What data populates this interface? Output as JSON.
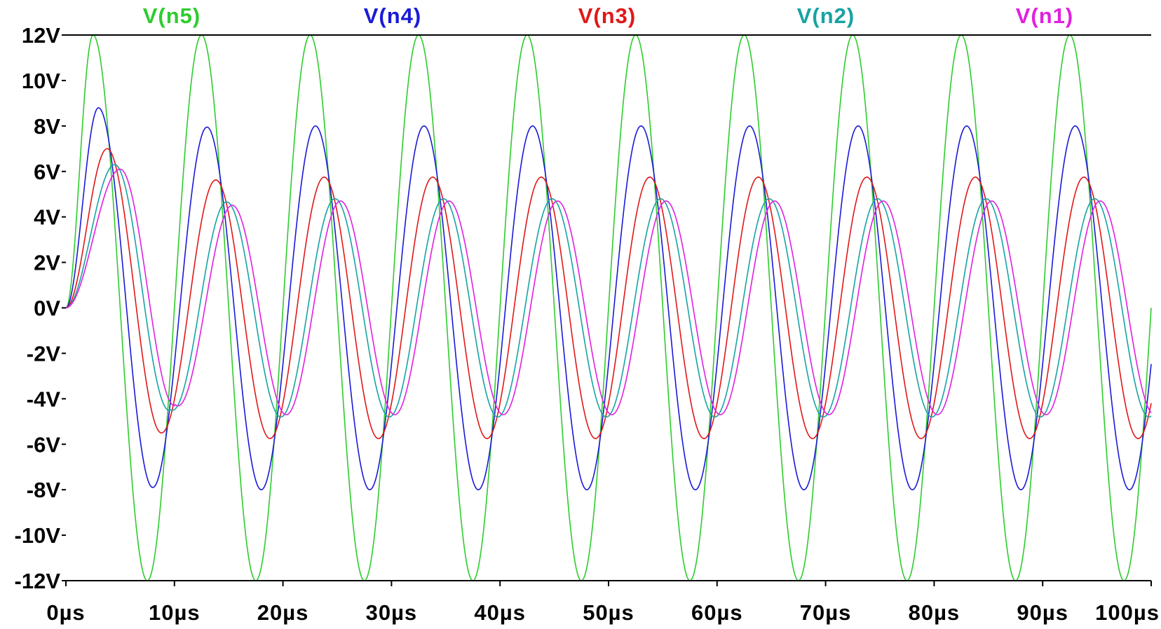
{
  "chart_data": {
    "type": "line",
    "title": "",
    "xlabel": "",
    "ylabel": "",
    "x_unit": "µs",
    "y_unit": "V",
    "xlim": [
      0,
      100
    ],
    "ylim": [
      -12,
      12
    ],
    "x_ticks": [
      0,
      10,
      20,
      30,
      40,
      50,
      60,
      70,
      80,
      90,
      100
    ],
    "x_tick_labels": [
      "0µs",
      "10µs",
      "20µs",
      "30µs",
      "40µs",
      "50µs",
      "60µs",
      "70µs",
      "80µs",
      "90µs",
      "100µs"
    ],
    "y_ticks": [
      12,
      10,
      8,
      6,
      4,
      2,
      0,
      -2,
      -4,
      -6,
      -8,
      -10,
      -12
    ],
    "y_tick_labels": [
      "12V",
      "10V",
      "8V",
      "6V",
      "4V",
      "2V",
      "0V",
      "-2V",
      "-4V",
      "-6V",
      "-8V",
      "-10V",
      "-12V"
    ],
    "grid": false,
    "legend_position": "top",
    "series": [
      {
        "name": "V(n5)",
        "color": "#2ecc2e",
        "waveform": "sine",
        "period_us": 10,
        "amplitude_v": 12,
        "steady_amplitude_v": 12,
        "first_peak": [
          2.5,
          12
        ],
        "first_trough": [
          7.5,
          -12
        ],
        "steady_peak_time_us": 2.5,
        "value_at_end": [
          100,
          0
        ]
      },
      {
        "name": "V(n4)",
        "color": "#1a1ad6",
        "waveform": "sine",
        "period_us": 10,
        "amplitude_v": 8,
        "steady_amplitude_v": 8,
        "first_peak": [
          3.0,
          8.8
        ],
        "first_trough": [
          8.0,
          -7.9
        ],
        "steady_peak_time_us": 3.0,
        "value_at_end": [
          100,
          -3.5
        ]
      },
      {
        "name": "V(n3)",
        "color": "#e01818",
        "waveform": "sine",
        "period_us": 10,
        "amplitude_v": 5.75,
        "steady_amplitude_v": 5.75,
        "first_peak": [
          3.8,
          7.0
        ],
        "first_trough": [
          8.8,
          -5.5
        ],
        "steady_peak_time_us": 3.8,
        "value_at_end": [
          100,
          -5.4
        ]
      },
      {
        "name": "V(n2)",
        "color": "#17a3a3",
        "waveform": "sine",
        "period_us": 10,
        "amplitude_v": 4.8,
        "steady_amplitude_v": 4.8,
        "first_peak": [
          4.5,
          6.3
        ],
        "first_trough": [
          9.5,
          -4.5
        ],
        "steady_peak_time_us": 4.8,
        "value_at_end": [
          100,
          -4.6
        ]
      },
      {
        "name": "V(n1)",
        "color": "#e020e0",
        "waveform": "sine",
        "period_us": 10,
        "amplitude_v": 4.7,
        "steady_amplitude_v": 4.7,
        "first_peak": [
          5.0,
          6.1
        ],
        "first_trough": [
          10.0,
          -4.3
        ],
        "steady_peak_time_us": 5.3,
        "value_at_end": [
          100,
          -4.5
        ]
      }
    ]
  }
}
